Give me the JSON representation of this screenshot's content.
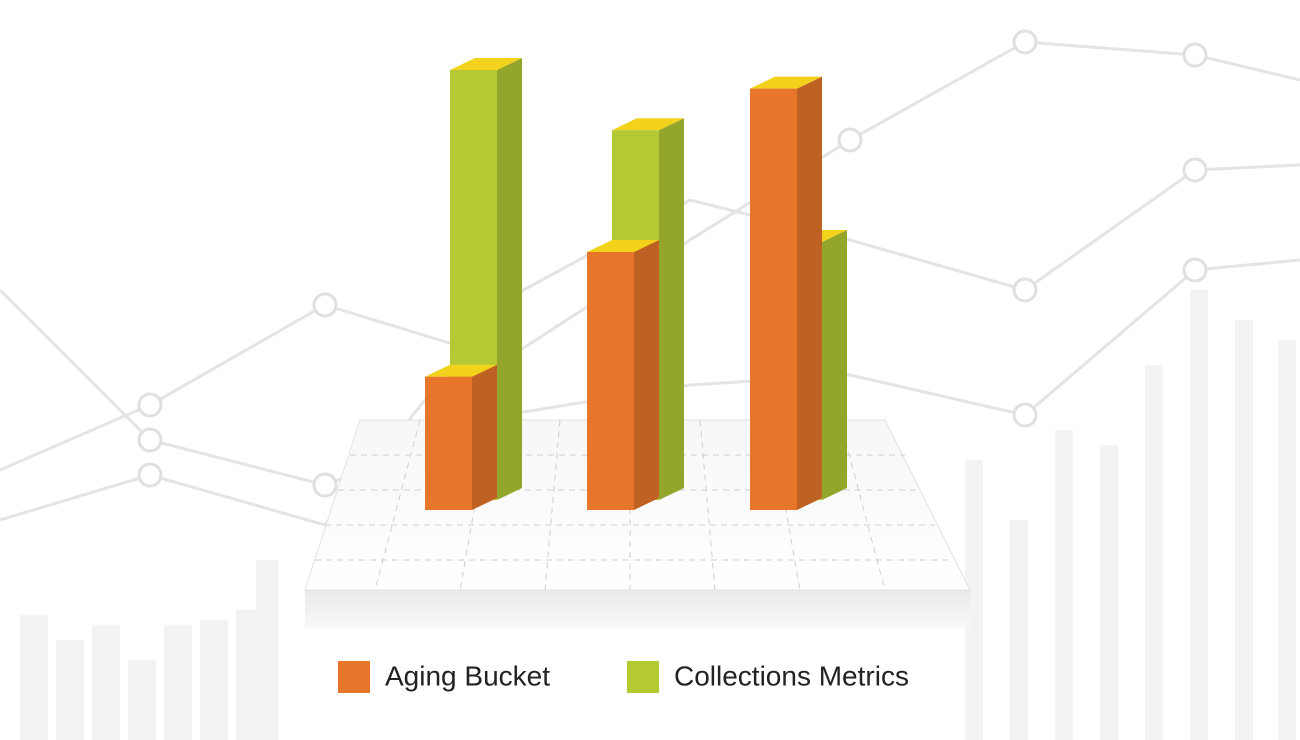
{
  "chart_data": {
    "type": "bar",
    "categories": [
      null,
      null,
      null
    ],
    "series": [
      {
        "name": "Aging Bucket",
        "color": "#e8762a",
        "values": [
          31,
          60,
          98
        ]
      },
      {
        "name": "Collections Metrics",
        "color": "#b5c934",
        "values": [
          100,
          86,
          60
        ]
      }
    ],
    "ylim": [
      0,
      100
    ]
  }
}
